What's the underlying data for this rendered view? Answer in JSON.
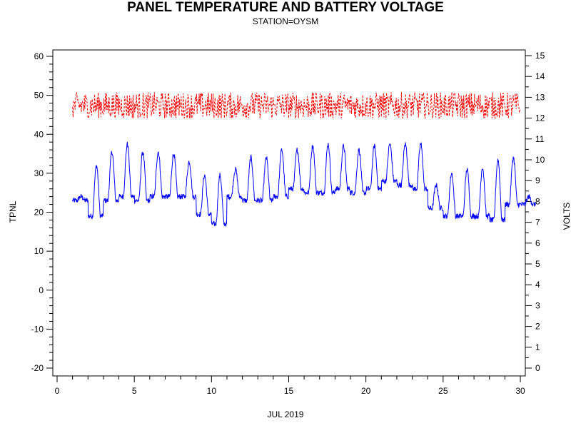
{
  "chart_data": {
    "type": "line",
    "title": "PANEL TEMPERATURE AND BATTERY VOLTAGE",
    "subtitle": "STATION=OYSM",
    "xlabel": "JUL 2019",
    "ylabel_left": "TPNL",
    "ylabel_right": "VOLTS",
    "xlim": [
      0,
      30
    ],
    "ylim_left": [
      -20,
      60
    ],
    "ylim_right": [
      0,
      15
    ],
    "x_ticks": [
      "0",
      "5",
      "10",
      "15",
      "20",
      "25",
      "30"
    ],
    "y_left_ticks": [
      "-20",
      "-10",
      "0",
      "10",
      "20",
      "30",
      "40",
      "50",
      "60"
    ],
    "y_right_ticks": [
      "0",
      "1",
      "2",
      "3",
      "4",
      "5",
      "6",
      "7",
      "8",
      "9",
      "10",
      "11",
      "12",
      "13",
      "14",
      "15"
    ],
    "grid": false,
    "series": [
      {
        "axis": "left",
        "color": "#0000ff",
        "style": "solid",
        "daily_min": [
          23,
          19,
          23,
          24,
          23,
          24,
          24,
          24,
          19.5,
          17,
          24,
          23,
          23,
          24,
          26,
          25,
          25,
          26,
          25,
          26,
          28,
          27,
          26,
          21,
          19,
          19,
          19,
          18,
          22,
          22
        ],
        "daily_max": [
          24,
          32,
          35.5,
          37.5,
          35.5,
          35.5,
          35,
          33,
          29.5,
          29.5,
          31,
          34,
          34,
          36,
          36,
          37,
          37.5,
          37,
          36,
          37,
          37.5,
          37.5,
          37.5,
          27,
          30,
          31,
          31.5,
          33.5,
          34,
          24
        ]
      },
      {
        "axis": "right",
        "color": "#ff0000",
        "style": "dashed",
        "min": 12.0,
        "max": 13.3,
        "mean": 12.6
      }
    ]
  }
}
